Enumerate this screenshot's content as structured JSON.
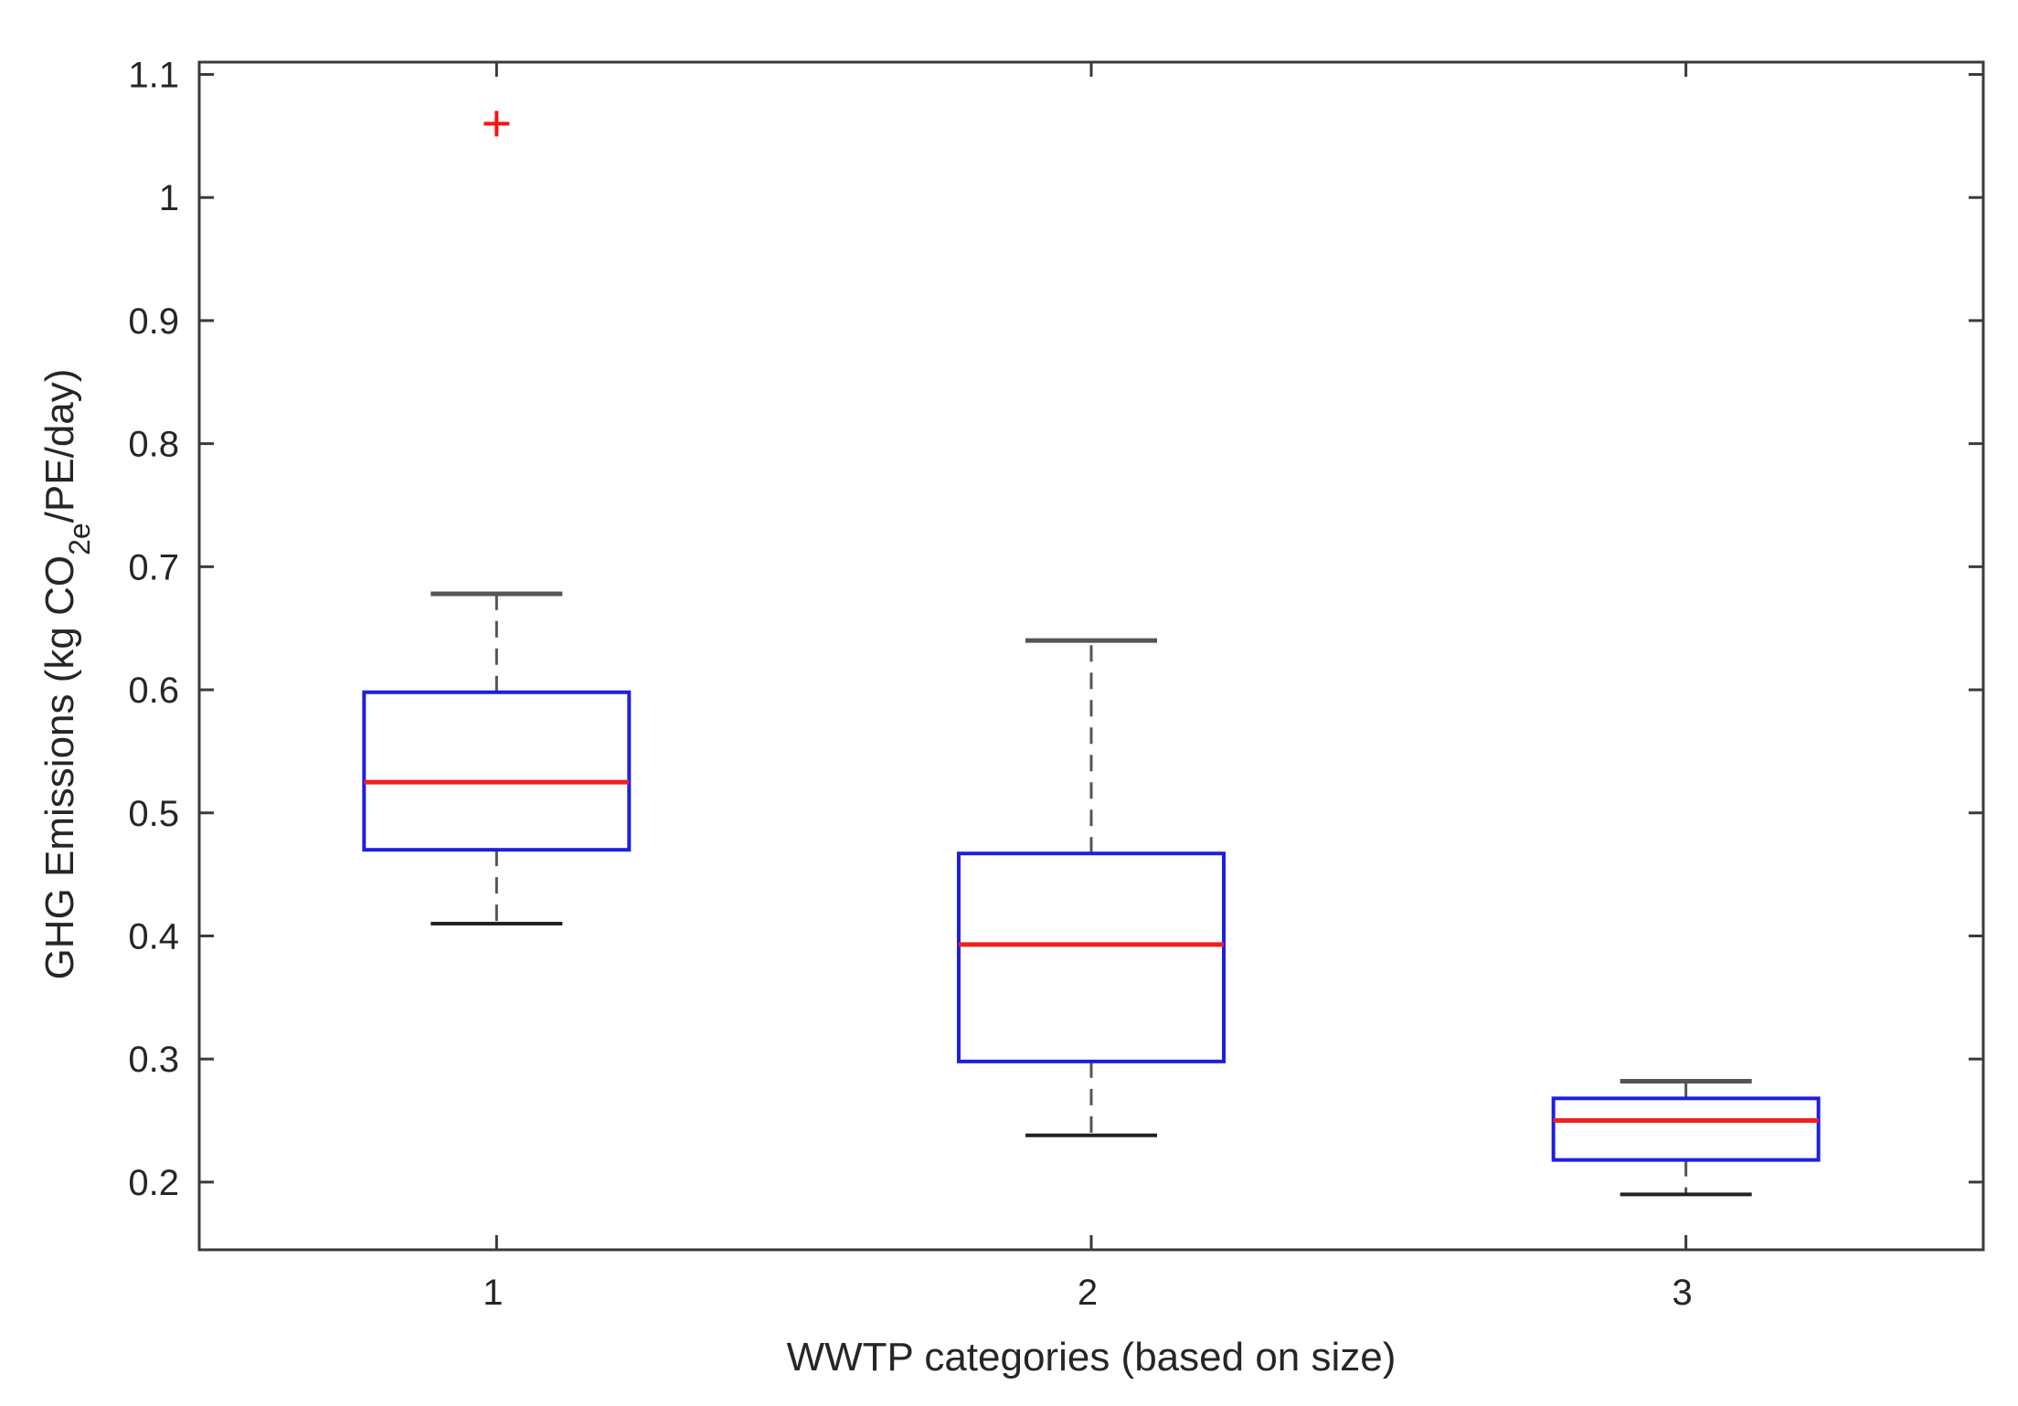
{
  "chart_data": {
    "type": "boxplot",
    "title": "",
    "xlabel": "WWTP categories (based on size)",
    "ylabel": {
      "main": "GHG Emissions (kg CO",
      "subscript": "2e",
      "suffix": "/PE/day)"
    },
    "ylim": [
      0.145,
      1.11
    ],
    "yticks": [
      0.2,
      0.3,
      0.4,
      0.5,
      0.6,
      0.7,
      0.8,
      0.9,
      1,
      1.1
    ],
    "ytick_labels": [
      "0.2",
      "0.3",
      "0.4",
      "0.5",
      "0.6",
      "0.7",
      "0.8",
      "0.9",
      "1",
      "1.1"
    ],
    "xlim": [
      0.5,
      3.5
    ],
    "categories": [
      "1",
      "2",
      "3"
    ],
    "boxes": [
      {
        "category": "1",
        "whisker_low": 0.41,
        "q1": 0.47,
        "median": 0.525,
        "q3": 0.598,
        "whisker_high": 0.678,
        "outliers": [
          1.06
        ]
      },
      {
        "category": "2",
        "whisker_low": 0.238,
        "q1": 0.298,
        "median": 0.393,
        "q3": 0.467,
        "whisker_high": 0.64,
        "outliers": []
      },
      {
        "category": "3",
        "whisker_low": 0.19,
        "q1": 0.218,
        "median": 0.25,
        "q3": 0.268,
        "whisker_high": 0.282,
        "outliers": []
      }
    ],
    "grid": false,
    "colors": {
      "box": "#1f1fe0",
      "median": "#ee2222",
      "whisker": "#555555",
      "outlier": "#ff1111",
      "axis": "#3a3a3a"
    }
  }
}
